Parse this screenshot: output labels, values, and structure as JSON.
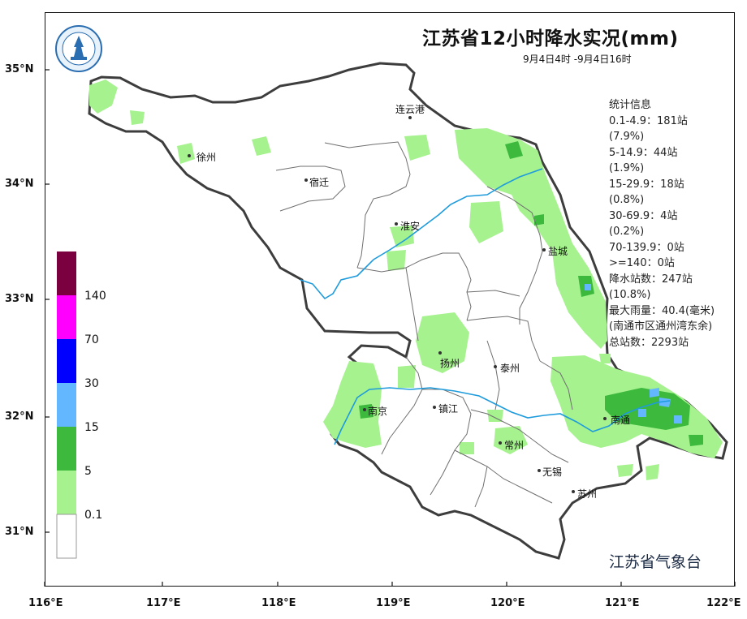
{
  "title": "江苏省12小时降水实况(mm)",
  "subtitle": "9月4日4时 -9月4日16时",
  "agency": "江苏省气象台",
  "stats": [
    "统计信息",
    "0.1-4.9：181站",
    "(7.9%)",
    "5-14.9：44站",
    "(1.9%)",
    "15-29.9：18站",
    "(0.8%)",
    "30-69.9：4站",
    "(0.2%)",
    "70-139.9：0站",
    ">=140：0站",
    "降水站数：247站",
    "(10.8%)",
    "最大雨量：40.4(毫米)",
    "(南通市区通州湾东余)",
    "总站数：2293站"
  ],
  "axes": {
    "lat_labels": [
      "35°N",
      "34°N",
      "33°N",
      "32°N",
      "31°N"
    ],
    "lon_labels": [
      "116°E",
      "117°E",
      "118°E",
      "119°E",
      "120°E",
      "121°E",
      "122°E"
    ]
  },
  "legend": {
    "labels": [
      "140",
      "70",
      "30",
      "15",
      "5",
      "0.1"
    ],
    "colors": [
      "#7a0040",
      "#ff00ff",
      "#0000ff",
      "#62b7ff",
      "#3dba3d",
      "#a6f28f",
      "#ffffff"
    ]
  },
  "cities": [
    "连云港",
    "徐州",
    "宿迁",
    "淮安",
    "盐城",
    "扬州",
    "泰州",
    "南京",
    "镇江",
    "南通",
    "常州",
    "无锡",
    "苏州"
  ],
  "colors": {
    "light_green": "#a6f28f",
    "green": "#3dba3d",
    "light_blue": "#62b7ff",
    "river": "#1e9bdc",
    "outline": "#3d3d3d"
  }
}
